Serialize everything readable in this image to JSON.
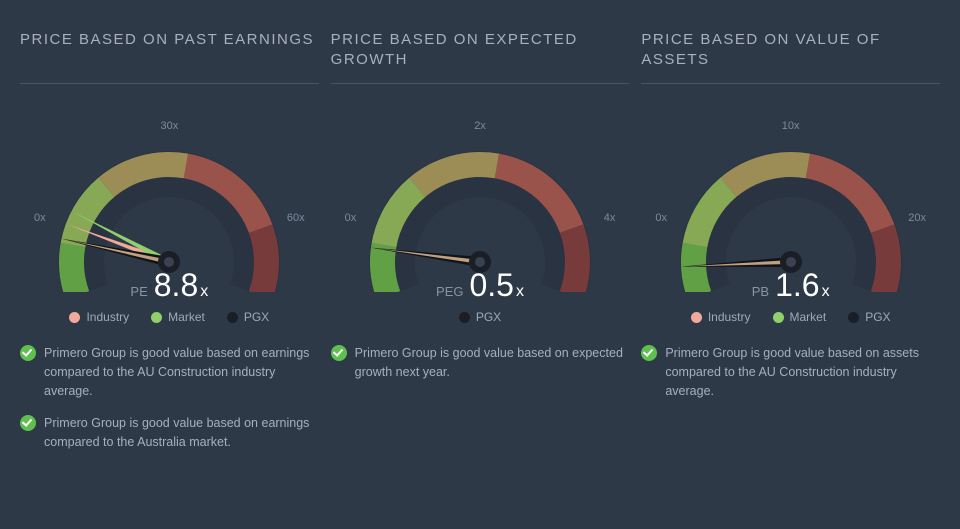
{
  "background_color": "#2e3948",
  "text_muted": "#9aa4b3",
  "colors": {
    "industry": "#f2a99a",
    "market": "#8fd06a",
    "pgx": "#1a1f27",
    "arc_left": "#6fb848",
    "arc_left2": "#9cc25a",
    "arc_mid": "#b6a15c",
    "arc_right": "#b25a4e",
    "arc_end": "#8a3d3a",
    "needle_outer": "#0f141c",
    "needle_inner": "#c2a07d"
  },
  "panels": [
    {
      "title": "PRICE BASED ON PAST EARNINGS",
      "metric_label": "PE",
      "value": "8.8",
      "suffix": "x",
      "max": 60,
      "needle_value": 8.8,
      "ticks": {
        "start": "0x",
        "mid": "30x",
        "end": "60x"
      },
      "extra_needles": [
        {
          "value": 11,
          "color": "industry"
        },
        {
          "value": 13,
          "color": "market"
        }
      ],
      "legend": [
        "industry",
        "market",
        "pgx"
      ],
      "notes": [
        "Primero Group is good value based on earnings compared to the AU Construction industry average.",
        "Primero Group is good value based on earnings compared to the Australia market."
      ]
    },
    {
      "title": "PRICE BASED ON EXPECTED GROWTH",
      "metric_label": "PEG",
      "value": "0.5",
      "suffix": "x",
      "max": 4,
      "needle_value": 0.5,
      "ticks": {
        "start": "0x",
        "mid": "2x",
        "end": "4x"
      },
      "extra_needles": [],
      "legend": [
        "pgx"
      ],
      "notes": [
        "Primero Group is good value based on expected growth next year."
      ]
    },
    {
      "title": "PRICE BASED ON VALUE OF ASSETS",
      "metric_label": "PB",
      "value": "1.6",
      "suffix": "x",
      "max": 20,
      "needle_value": 1.6,
      "ticks": {
        "start": "0x",
        "mid": "10x",
        "end": "20x"
      },
      "extra_needles": [],
      "legend": [
        "industry",
        "market",
        "pgx"
      ],
      "notes": [
        "Primero Group is good value based on assets compared to the AU Construction industry average."
      ]
    }
  ],
  "legend_labels": {
    "industry": "Industry",
    "market": "Market",
    "pgx": "PGX"
  }
}
